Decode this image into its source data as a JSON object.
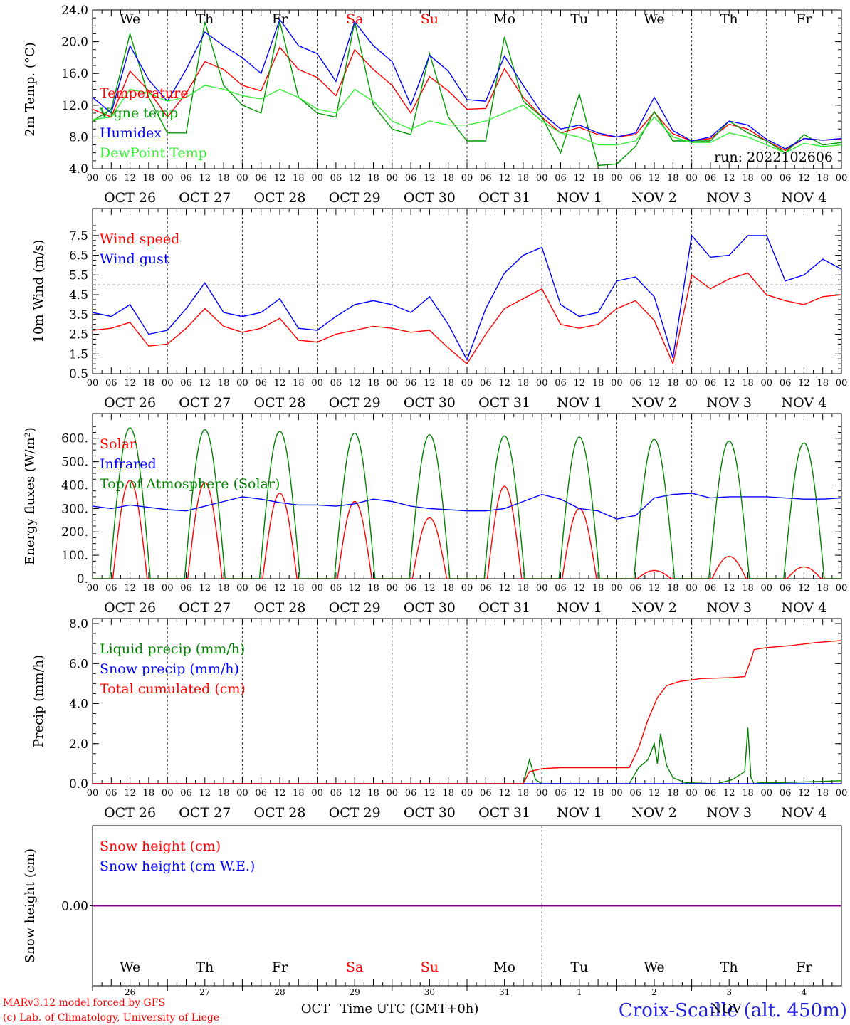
{
  "footer": {
    "model_line": "MARv3.12 model forced by GFS",
    "copyright_line": "(c) Lab. of Climatology, University of Liege",
    "station": "Croix-Scaille (alt. 450m)",
    "xlabel": "Time UTC (GMT+0h)",
    "month_left": "OCT",
    "month_right": "NOV"
  },
  "days": {
    "weekdays": [
      "We",
      "Th",
      "Fr",
      "Sa",
      "Su",
      "Mo",
      "Tu",
      "We",
      "Th",
      "Fr"
    ],
    "weekend_color": "#ff0000",
    "weekday_color": "#000000",
    "weekend_index": [
      3,
      4
    ],
    "dates": [
      "OCT 26",
      "OCT 27",
      "OCT 28",
      "OCT 29",
      "OCT 30",
      "OCT 31",
      "NOV  1",
      "NOV  2",
      "NOV  3",
      "NOV  4"
    ],
    "day_numbers": [
      "26",
      "27",
      "28",
      "29",
      "30",
      "31",
      "1",
      "2",
      "3",
      "4"
    ],
    "hour_ticks": [
      "00",
      "06",
      "12",
      "18"
    ],
    "end_tick": "00"
  },
  "chart_data": [
    {
      "type": "line",
      "ylabel": "2m Temp. (°C)",
      "ylim": [
        4.0,
        24.0
      ],
      "yticks": [
        "4.0",
        "8.0",
        "12.0",
        "16.0",
        "20.0",
        "24.0"
      ],
      "x_unit": "hours since 2022-10-26 00 UTC",
      "annotation": "run: 2022102606",
      "series": [
        {
          "name": "Temperature",
          "color": "#ff0000",
          "x": [
            0,
            6,
            12,
            18,
            24,
            30,
            36,
            42,
            48,
            54,
            60,
            66,
            72,
            78,
            84,
            90,
            96,
            102,
            108,
            114,
            120,
            126,
            132,
            138,
            144,
            150,
            156,
            162,
            168,
            174,
            180,
            186,
            192,
            198,
            204,
            210,
            216,
            222,
            228,
            234,
            240
          ],
          "y": [
            11.5,
            10.5,
            16.3,
            13.8,
            10.5,
            13.5,
            17.5,
            16.5,
            14.5,
            13.8,
            19.3,
            16.5,
            15.5,
            13.2,
            19.0,
            16.5,
            14.5,
            11.0,
            15.6,
            13.8,
            11.5,
            11.6,
            16.6,
            13.0,
            10.5,
            8.5,
            9.2,
            8.3,
            8.0,
            8.3,
            11.1,
            8.4,
            7.5,
            7.8,
            9.6,
            9.0,
            7.5,
            6.3,
            7.8,
            7.6,
            7.7
          ]
        },
        {
          "name": "Vigne temp",
          "color": "#009900",
          "x": [
            0,
            6,
            12,
            18,
            24,
            30,
            36,
            42,
            48,
            54,
            60,
            66,
            72,
            78,
            84,
            90,
            96,
            102,
            108,
            114,
            120,
            126,
            132,
            138,
            144,
            150,
            156,
            162,
            168,
            174,
            180,
            186,
            192,
            198,
            204,
            210,
            216,
            222,
            228,
            234,
            240
          ],
          "y": [
            10.0,
            11.5,
            21.0,
            13.0,
            8.5,
            8.5,
            22.5,
            14.5,
            12.0,
            11.0,
            22.5,
            13.0,
            11.0,
            10.5,
            22.5,
            12.0,
            9.0,
            8.3,
            18.5,
            10.5,
            7.5,
            7.5,
            20.6,
            12.5,
            10.5,
            6.0,
            13.4,
            4.4,
            4.6,
            6.8,
            11.2,
            7.5,
            7.5,
            7.5,
            10.0,
            8.5,
            7.5,
            6.0,
            8.3,
            7.0,
            7.3
          ]
        },
        {
          "name": "Humidex",
          "color": "#0000ff",
          "x": [
            0,
            6,
            12,
            18,
            24,
            30,
            36,
            42,
            48,
            54,
            60,
            66,
            72,
            78,
            84,
            90,
            96,
            102,
            108,
            114,
            120,
            126,
            132,
            138,
            144,
            150,
            156,
            162,
            168,
            174,
            180,
            186,
            192,
            198,
            204,
            210,
            216,
            222,
            228,
            234,
            240
          ],
          "y": [
            13.0,
            11.0,
            19.5,
            15.2,
            12.5,
            16.5,
            21.2,
            19.5,
            18.0,
            16.0,
            22.8,
            19.5,
            18.5,
            15.0,
            22.5,
            19.5,
            17.5,
            12.0,
            18.3,
            16.3,
            12.7,
            12.5,
            18.2,
            14.5,
            11.0,
            9.0,
            9.5,
            8.5,
            8.0,
            8.5,
            13.0,
            8.8,
            7.5,
            8.0,
            10.0,
            9.5,
            7.7,
            6.5,
            7.8,
            7.6,
            7.8
          ]
        },
        {
          "name": "DewPoint Temp",
          "color": "#33ee33",
          "x": [
            0,
            6,
            12,
            18,
            24,
            30,
            36,
            42,
            48,
            54,
            60,
            66,
            72,
            78,
            84,
            90,
            96,
            102,
            108,
            114,
            120,
            126,
            132,
            138,
            144,
            150,
            156,
            162,
            168,
            174,
            180,
            186,
            192,
            198,
            204,
            210,
            216,
            222,
            228,
            234,
            240
          ],
          "y": [
            10.2,
            10.5,
            14.0,
            13.5,
            12.5,
            13.0,
            14.5,
            14.0,
            13.2,
            12.8,
            14.0,
            13.0,
            11.5,
            11.0,
            14.0,
            12.5,
            10.0,
            9.0,
            10.0,
            9.5,
            9.5,
            10.0,
            11.0,
            12.0,
            10.0,
            8.5,
            8.0,
            7.0,
            7.0,
            7.5,
            10.5,
            8.0,
            7.3,
            7.3,
            8.5,
            8.0,
            7.0,
            6.0,
            7.2,
            6.8,
            7.0
          ]
        }
      ]
    },
    {
      "type": "line",
      "ylabel": "10m Wind (m/s)",
      "ylim": [
        0.5,
        8.0
      ],
      "yticks": [
        "0.5",
        "1.5",
        "2.5",
        "3.5",
        "4.5",
        "5.5",
        "6.5",
        "7.5"
      ],
      "x_unit": "hours since 2022-10-26 00 UTC",
      "reference_line": 5.0,
      "series": [
        {
          "name": "Wind speed",
          "color": "#ff0000",
          "x": [
            0,
            6,
            12,
            18,
            24,
            30,
            36,
            42,
            48,
            54,
            60,
            66,
            72,
            78,
            84,
            90,
            96,
            102,
            108,
            114,
            120,
            126,
            132,
            138,
            144,
            150,
            156,
            162,
            168,
            174,
            180,
            186,
            192,
            198,
            204,
            210,
            216,
            222,
            228,
            234,
            240
          ],
          "y": [
            2.7,
            2.8,
            3.1,
            1.9,
            2.0,
            2.8,
            3.8,
            2.9,
            2.6,
            2.8,
            3.3,
            2.2,
            2.1,
            2.5,
            2.7,
            2.9,
            2.8,
            2.6,
            2.7,
            1.8,
            1.0,
            2.5,
            3.8,
            4.3,
            4.8,
            3.0,
            2.8,
            3.0,
            3.8,
            4.2,
            3.2,
            1.0,
            5.5,
            4.8,
            5.3,
            5.6,
            4.5,
            4.2,
            4.0,
            4.4,
            4.5
          ]
        },
        {
          "name": "Wind gust",
          "color": "#0000ff",
          "x": [
            0,
            6,
            12,
            18,
            24,
            30,
            36,
            42,
            48,
            54,
            60,
            66,
            72,
            78,
            84,
            90,
            96,
            102,
            108,
            114,
            120,
            126,
            132,
            138,
            144,
            150,
            156,
            162,
            168,
            174,
            180,
            186,
            192,
            198,
            204,
            210,
            216,
            222,
            228,
            234,
            240
          ],
          "y": [
            3.6,
            3.4,
            4.0,
            2.5,
            2.7,
            3.8,
            5.1,
            3.6,
            3.4,
            3.6,
            4.3,
            2.8,
            2.7,
            3.4,
            4.0,
            4.2,
            4.0,
            3.6,
            4.4,
            3.0,
            1.2,
            3.8,
            5.6,
            6.5,
            6.9,
            4.0,
            3.4,
            3.6,
            5.2,
            5.4,
            4.4,
            1.3,
            7.5,
            6.4,
            6.5,
            7.5,
            7.5,
            5.2,
            5.5,
            6.3,
            5.8
          ]
        }
      ]
    },
    {
      "type": "line",
      "ylabel": "Energy fluxes (W/m²)",
      "ylim": [
        0,
        660
      ],
      "yticks": [
        "0.",
        "100.",
        "200.",
        "300.",
        "400.",
        "500.",
        "600."
      ],
      "x_unit": "hours since 2022-10-26 00 UTC",
      "solar_peaks": [
        420,
        410,
        365,
        330,
        260,
        395,
        300,
        35,
        95,
        50
      ],
      "toa_peaks": [
        645,
        637,
        630,
        622,
        615,
        610,
        605,
        595,
        588,
        580
      ],
      "series": [
        {
          "name": "Solar",
          "color": "#ff0000"
        },
        {
          "name": "Infrared",
          "color": "#0000ff",
          "x": [
            0,
            6,
            12,
            18,
            24,
            30,
            36,
            42,
            48,
            54,
            60,
            66,
            72,
            78,
            84,
            90,
            96,
            102,
            108,
            114,
            120,
            126,
            132,
            138,
            144,
            150,
            156,
            162,
            168,
            174,
            180,
            186,
            192,
            198,
            204,
            210,
            216,
            222,
            228,
            234,
            240
          ],
          "y": [
            310,
            300,
            315,
            305,
            295,
            290,
            310,
            330,
            350,
            340,
            325,
            315,
            315,
            310,
            320,
            340,
            330,
            310,
            300,
            295,
            290,
            290,
            300,
            330,
            360,
            340,
            300,
            290,
            255,
            270,
            345,
            360,
            365,
            345,
            350,
            350,
            350,
            345,
            340,
            340,
            345
          ]
        },
        {
          "name": "Top of Atmosphere (Solar)",
          "color": "#008000"
        }
      ]
    },
    {
      "type": "line",
      "ylabel": "Precip (mm/h)",
      "ylim": [
        0,
        8.0
      ],
      "yticks": [
        "0.0",
        "2.0",
        "4.0",
        "6.0",
        "8.0"
      ],
      "x_unit": "hours since 2022-10-26 00 UTC",
      "series": [
        {
          "name": "Liquid precip (mm/h)",
          "color": "#008000",
          "x": [
            0,
            138,
            140,
            142,
            144,
            150,
            160,
            172,
            175,
            178,
            180,
            181,
            182,
            184,
            186,
            190,
            200,
            205,
            209,
            210,
            211,
            212,
            214,
            220,
            230,
            240
          ],
          "y": [
            0,
            0,
            1.2,
            0.2,
            0,
            0,
            0,
            0,
            0.8,
            1.2,
            2.0,
            1.0,
            2.5,
            0.9,
            0.3,
            0.05,
            0,
            0.2,
            0.6,
            2.8,
            0.3,
            0,
            0.05,
            0.05,
            0.1,
            0.15
          ]
        },
        {
          "name": "Snow precip (mm/h)",
          "color": "#0000ff",
          "x": [
            0,
            240
          ],
          "y": [
            0,
            0
          ]
        },
        {
          "name": "Total cumulated (cm)",
          "color": "#ff0000",
          "x": [
            0,
            138,
            140,
            144,
            150,
            160,
            170,
            172,
            175,
            178,
            181,
            184,
            188,
            195,
            205,
            209,
            211,
            212,
            216,
            224,
            232,
            240
          ],
          "y": [
            0,
            0,
            0.6,
            0.75,
            0.8,
            0.8,
            0.8,
            0.8,
            1.8,
            3.2,
            4.3,
            4.9,
            5.1,
            5.25,
            5.3,
            5.35,
            6.2,
            6.7,
            6.8,
            6.9,
            7.05,
            7.15
          ]
        }
      ]
    },
    {
      "type": "line",
      "ylabel": "Snow height (cm)",
      "ylim": [
        -1,
        1
      ],
      "yticks": [
        "0.00"
      ],
      "series": [
        {
          "name": "Snow height (cm)",
          "color": "#ff0000",
          "x": [
            0,
            240
          ],
          "y": [
            0,
            0
          ]
        },
        {
          "name": "Snow height (cm W.E.)",
          "color": "#0000ff",
          "x": [
            0,
            240
          ],
          "y": [
            0,
            0
          ]
        }
      ]
    }
  ]
}
